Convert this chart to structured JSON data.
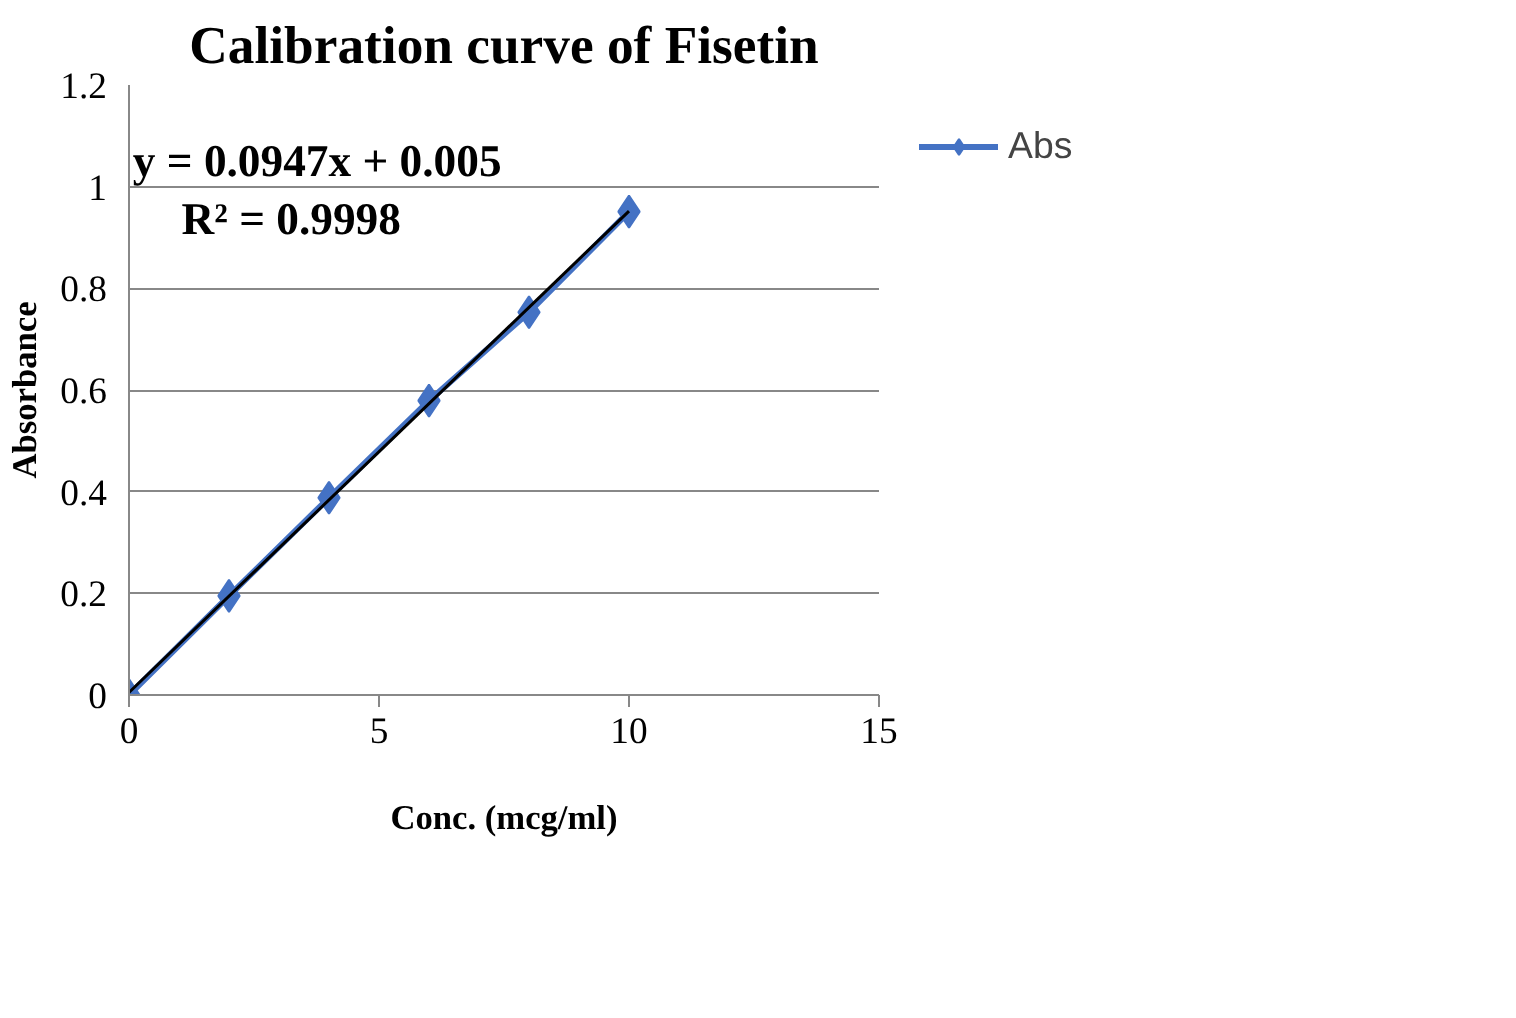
{
  "chart_data": {
    "type": "line",
    "title": "Calibration curve of Fisetin",
    "xlabel": "Conc. (mcg/ml)",
    "ylabel": "Absorbance",
    "x": [
      0,
      2,
      4,
      6,
      8,
      10
    ],
    "series": [
      {
        "name": "Abs",
        "color": "#4472c4",
        "marker": "diamond",
        "values": [
          0,
          0.195,
          0.388,
          0.579,
          0.753,
          0.951
        ]
      },
      {
        "color": "#000000",
        "marker": "none",
        "x": [
          0,
          10
        ],
        "values": [
          0.005,
          0.952
        ]
      }
    ],
    "annotations": [
      "y = 0.0947x + 0.005",
      "R² = 0.9998"
    ],
    "xlim": [
      0,
      15
    ],
    "xticks": [
      0,
      5,
      10,
      15
    ],
    "ylim": [
      0,
      1.2
    ],
    "yticks": [
      0,
      0.2,
      0.4,
      0.6,
      0.8,
      1,
      1.2
    ],
    "grid": "y",
    "legend": "right"
  }
}
